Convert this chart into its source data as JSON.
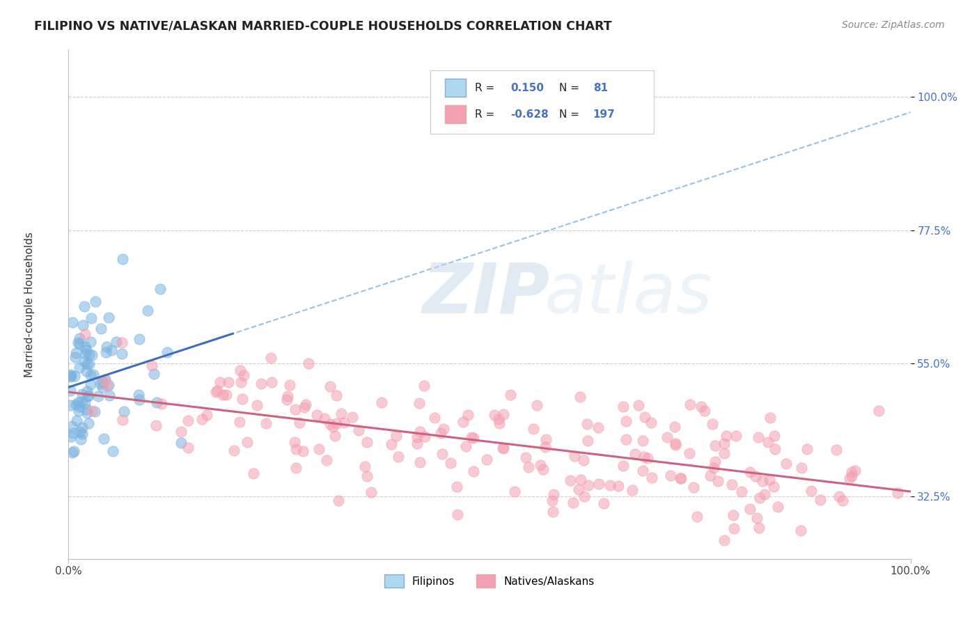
{
  "title": "FILIPINO VS NATIVE/ALASKAN MARRIED-COUPLE HOUSEHOLDS CORRELATION CHART",
  "source_text": "Source: ZipAtlas.com",
  "ylabel": "Married-couple Households",
  "background_color": "#ffffff",
  "grid_color": "#c8c8c8",
  "filipino_color": "#7ab3e0",
  "native_color": "#f4a0b0",
  "trend_blue_solid": "#3b6fbe",
  "trend_blue_dash": "#7ab3e0",
  "trend_pink_solid": "#d06080",
  "legend_R1": "0.150",
  "legend_N1": "81",
  "legend_R2": "-0.628",
  "legend_N2": "197",
  "legend_label1": "Filipinos",
  "legend_label2": "Natives/Alaskans",
  "watermark_zip": "ZIP",
  "watermark_atlas": "atlas",
  "xlim": [
    0.0,
    1.0
  ],
  "ylim": [
    0.22,
    1.08
  ],
  "ytick_positions": [
    0.325,
    0.55,
    0.775,
    1.0
  ],
  "ytick_labels": [
    "32.5%",
    "55.0%",
    "77.5%",
    "100.0%"
  ],
  "xtick_positions": [
    0.0,
    1.0
  ],
  "xtick_labels": [
    "0.0%",
    "100.0%"
  ]
}
